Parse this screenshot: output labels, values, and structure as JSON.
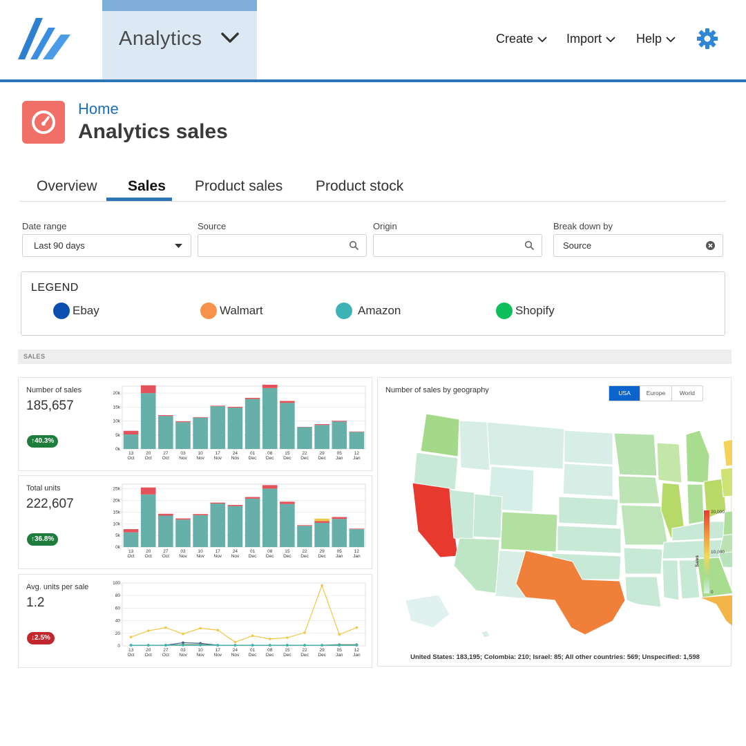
{
  "nav": {
    "app_name": "Analytics",
    "links": [
      {
        "label": "Create"
      },
      {
        "label": "Import"
      },
      {
        "label": "Help"
      }
    ]
  },
  "header": {
    "breadcrumb": "Home",
    "title": "Analytics sales"
  },
  "tabs": [
    {
      "label": "Overview",
      "active": false
    },
    {
      "label": "Sales",
      "active": true
    },
    {
      "label": "Product sales",
      "active": false
    },
    {
      "label": "Product stock",
      "active": false
    }
  ],
  "filters": {
    "date_range": {
      "label": "Date range",
      "value": "Last 90 days"
    },
    "source": {
      "label": "Source",
      "value": ""
    },
    "origin": {
      "label": "Origin",
      "value": ""
    },
    "breakdown": {
      "label": "Break down by",
      "value": "Source"
    }
  },
  "legend": {
    "title": "LEGEND",
    "items": [
      {
        "label": "Ebay",
        "color": "#0a4fb0"
      },
      {
        "label": "Walmart",
        "color": "#f8924a"
      },
      {
        "label": "Amazon",
        "color": "#3eb3b5"
      },
      {
        "label": "Shopify",
        "color": "#0fbf5c"
      }
    ]
  },
  "section": {
    "label": "SALES"
  },
  "cards": [
    {
      "title": "Number of sales",
      "value": "185,657",
      "change": "↑40.3%",
      "change_color": "#1e7d3c"
    },
    {
      "title": "Total units",
      "value": "222,607",
      "change": "↑36.8%",
      "change_color": "#1e7d3c"
    },
    {
      "title": "Avg. units per sale",
      "value": "1.2",
      "change": "↓2.5%",
      "change_color": "#c4262e"
    }
  ],
  "chart_data": [
    {
      "type": "bar",
      "title": "Number of sales",
      "categories": [
        "13 Oct",
        "20 Oct",
        "27 Oct",
        "03 Nov",
        "10 Nov",
        "17 Nov",
        "24 Nov",
        "01 Dec",
        "08 Dec",
        "15 Dec",
        "22 Dec",
        "29 Dec",
        "05 Jan",
        "12 Jan"
      ],
      "y_ticks": [
        "0k",
        "5k",
        "10k",
        "15k",
        "20k"
      ],
      "ylim": [
        0,
        22500
      ],
      "series": [
        {
          "values": [
            5200,
            20000,
            11800,
            9600,
            11200,
            15300,
            14800,
            17900,
            21800,
            16500,
            7800,
            8600,
            9800,
            6100
          ],
          "color": "#67b0a9"
        },
        {
          "values": [
            1300,
            2800,
            300,
            300,
            200,
            200,
            300,
            400,
            1200,
            700,
            100,
            300,
            300,
            150
          ],
          "color": "#e4525b"
        }
      ]
    },
    {
      "type": "bar",
      "title": "Total units",
      "categories": [
        "13 Oct",
        "20 Oct",
        "27 Oct",
        "03 Nov",
        "10 Nov",
        "17 Nov",
        "24 Nov",
        "01 Dec",
        "08 Dec",
        "15 Dec",
        "22 Dec",
        "29 Dec",
        "05 Jan",
        "12 Jan"
      ],
      "y_ticks": [
        "0k",
        "5k",
        "10k",
        "15k",
        "20k",
        "25k"
      ],
      "ylim": [
        0,
        27000
      ],
      "series": [
        {
          "values": [
            6300,
            22600,
            13500,
            11800,
            13700,
            18700,
            17600,
            20800,
            25100,
            18500,
            9100,
            10400,
            12100,
            7700
          ],
          "color": "#67b0a9"
        },
        {
          "values": [
            1400,
            3000,
            800,
            500,
            500,
            400,
            500,
            700,
            1500,
            1000,
            300,
            800,
            800,
            200
          ],
          "color": "#e4525b"
        },
        {
          "values": [
            0,
            0,
            0,
            0,
            0,
            0,
            0,
            0,
            0,
            0,
            0,
            1000,
            0,
            0
          ],
          "color": "#f0c844"
        }
      ]
    },
    {
      "type": "line",
      "title": "Avg. units per sale",
      "categories": [
        "13 Oct",
        "20 Oct",
        "27 Oct",
        "03 Nov",
        "10 Nov",
        "17 Nov",
        "24 Nov",
        "01 Dec",
        "08 Dec",
        "15 Dec",
        "22 Dec",
        "29 Dec",
        "05 Jan",
        "12 Jan"
      ],
      "y_ticks": [
        "0",
        "20",
        "40",
        "60",
        "80",
        "100"
      ],
      "ylim": [
        0,
        100
      ],
      "series": [
        {
          "values": [
            14,
            24,
            29,
            19,
            28,
            25,
            6,
            16,
            11,
            13,
            21,
            96,
            18,
            29
          ],
          "color": "#f0c844"
        },
        {
          "values": [
            1,
            1,
            1,
            5,
            4,
            1,
            1,
            1,
            1,
            1,
            1,
            1,
            1,
            1
          ],
          "color": "#3f5c87"
        },
        {
          "values": [
            1,
            1,
            1,
            2,
            2,
            1,
            1,
            1,
            1,
            1,
            1,
            1,
            2,
            2
          ],
          "color": "#6b8f56"
        },
        {
          "values": [
            1,
            1,
            1,
            1,
            1,
            1,
            1,
            1,
            1,
            1,
            1,
            1,
            1,
            1
          ],
          "color": "#3eb3b5"
        }
      ]
    },
    {
      "type": "heatmap",
      "title": "Number of sales by geography",
      "region": "USA",
      "scale_label": "Sales",
      "scale_ticks": [
        "20,000",
        "10,000",
        "0"
      ],
      "summary": "United States: 183,195; Colombia: 210; Israel: 85; All other countries: 569; Unspecified: 1,598"
    }
  ],
  "map": {
    "title": "Number of sales by geography",
    "tabs": [
      "USA",
      "Europe",
      "World"
    ],
    "active_tab": "USA",
    "scale_label": "Sales",
    "scale_ticks": [
      "20,000",
      "10,000",
      "0"
    ],
    "footer": "United States: 183,195; Colombia: 210; Israel: 85; All other countries: 569; Unspecified: 1,598"
  }
}
